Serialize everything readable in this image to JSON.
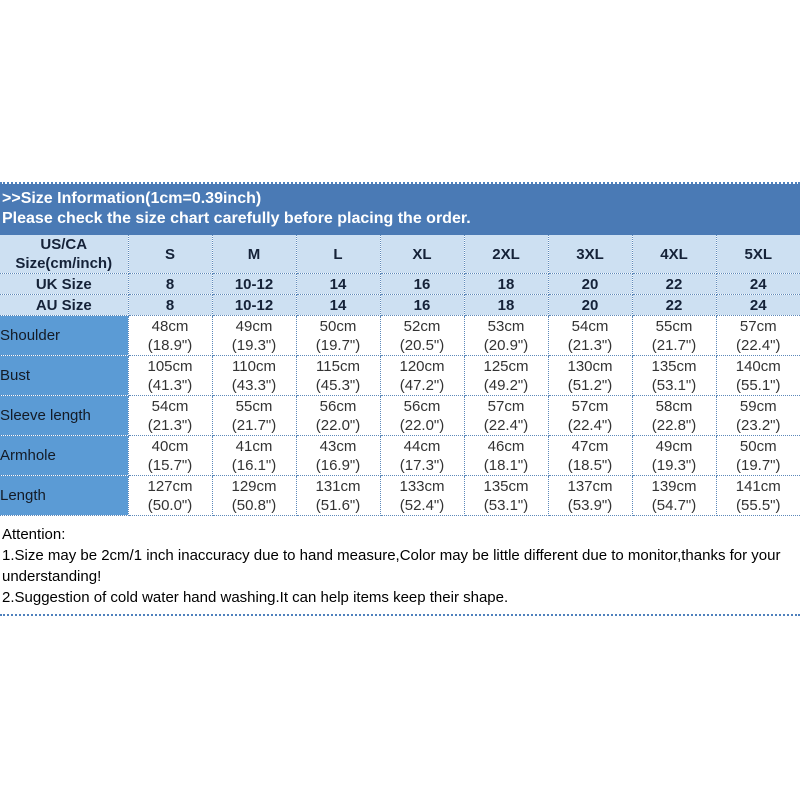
{
  "banner": {
    "line1": ">>Size Information(1cm=0.39inch)",
    "line2": "Please check the size chart carefully before placing the order."
  },
  "table": {
    "corner_header_line1": "US/CA",
    "corner_header_line2": "Size(cm/inch)",
    "size_columns": [
      "S",
      "M",
      "L",
      "XL",
      "2XL",
      "3XL",
      "4XL",
      "5XL"
    ],
    "uk_row": {
      "label": "UK Size",
      "values": [
        "8",
        "10-12",
        "14",
        "16",
        "18",
        "20",
        "22",
        "24"
      ]
    },
    "au_row": {
      "label": "AU Size",
      "values": [
        "8",
        "10-12",
        "14",
        "16",
        "18",
        "20",
        "22",
        "24"
      ]
    },
    "measurement_rows": [
      {
        "label": "Shoulder",
        "cm": [
          "48cm",
          "49cm",
          "50cm",
          "52cm",
          "53cm",
          "54cm",
          "55cm",
          "57cm"
        ],
        "inch": [
          "(18.9\")",
          "(19.3\")",
          "(19.7\")",
          "(20.5\")",
          "(20.9\")",
          "(21.3\")",
          "(21.7\")",
          "(22.4\")"
        ]
      },
      {
        "label": "Bust",
        "cm": [
          "105cm",
          "110cm",
          "115cm",
          "120cm",
          "125cm",
          "130cm",
          "135cm",
          "140cm"
        ],
        "inch": [
          "(41.3\")",
          "(43.3\")",
          "(45.3\")",
          "(47.2\")",
          "(49.2\")",
          "(51.2\")",
          "(53.1\")",
          "(55.1\")"
        ]
      },
      {
        "label": "Sleeve length",
        "cm": [
          "54cm",
          "55cm",
          "56cm",
          "56cm",
          "57cm",
          "57cm",
          "58cm",
          "59cm"
        ],
        "inch": [
          "(21.3\")",
          "(21.7\")",
          "(22.0\")",
          "(22.0\")",
          "(22.4\")",
          "(22.4\")",
          "(22.8\")",
          "(23.2\")"
        ]
      },
      {
        "label": "Armhole",
        "cm": [
          "40cm",
          "41cm",
          "43cm",
          "44cm",
          "46cm",
          "47cm",
          "49cm",
          "50cm"
        ],
        "inch": [
          "(15.7\")",
          "(16.1\")",
          "(16.9\")",
          "(17.3\")",
          "(18.1\")",
          "(18.5\")",
          "(19.3\")",
          "(19.7\")"
        ]
      },
      {
        "label": "Length",
        "cm": [
          "127cm",
          "129cm",
          "131cm",
          "133cm",
          "135cm",
          "137cm",
          "139cm",
          "141cm"
        ],
        "inch": [
          "(50.0\")",
          "(50.8\")",
          "(51.6\")",
          "(52.4\")",
          "(53.1\")",
          "(53.9\")",
          "(54.7\")",
          "(55.5\")"
        ]
      }
    ]
  },
  "attention": {
    "title": "Attention:",
    "note1": "1.Size may be 2cm/1 inch inaccuracy due to hand measure,Color may be little different due to monitor,thanks for your understanding!",
    "note2": "2.Suggestion of cold water hand washing.It can help items keep their shape."
  },
  "colors": {
    "banner_bg": "#4a7ab5",
    "header_bg": "#cde0f2",
    "label_column_bg": "#5b9bd5",
    "dotted_border": "#5d89ba",
    "header_text": "#152238"
  }
}
